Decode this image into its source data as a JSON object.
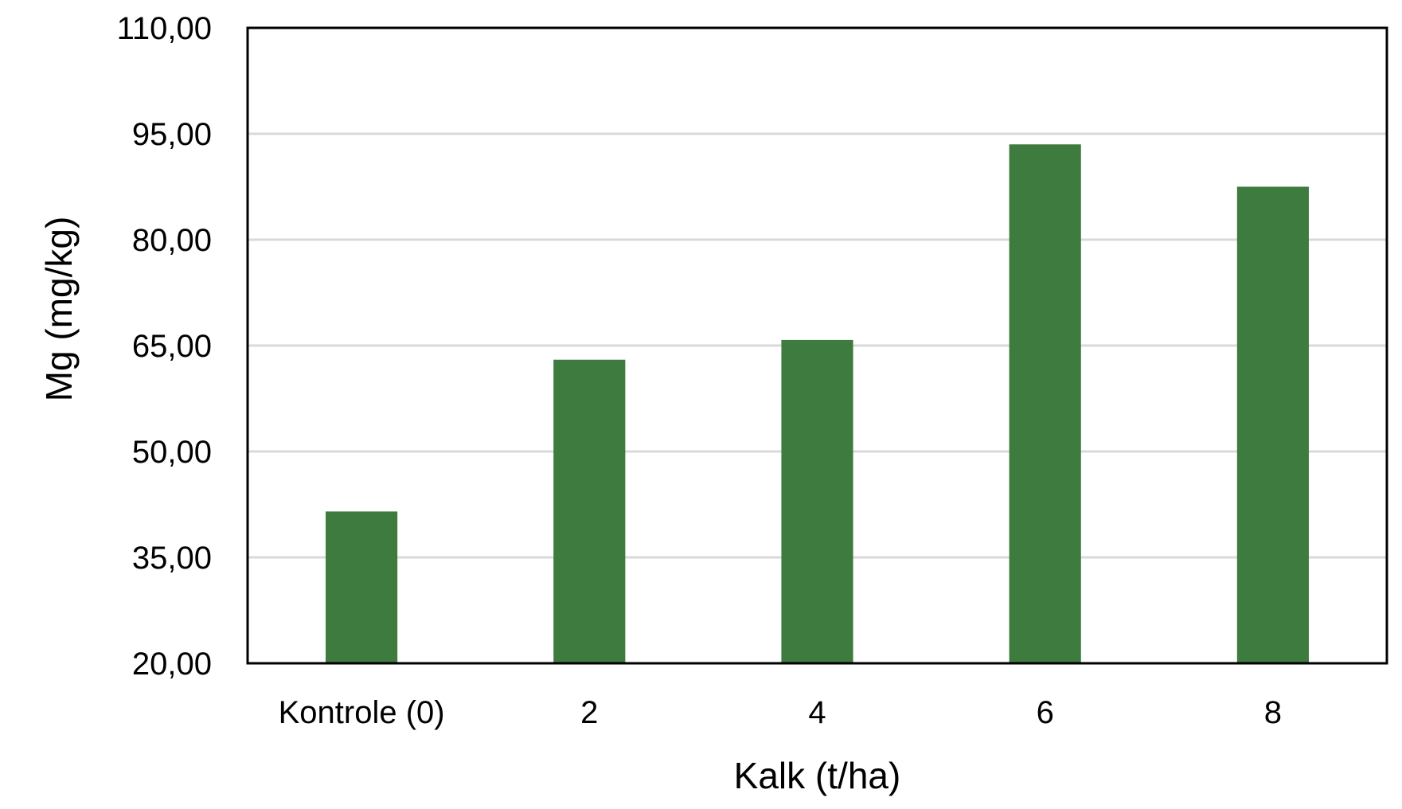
{
  "chart_data": {
    "type": "bar",
    "title": "",
    "xlabel": "Kalk (t/ha)",
    "ylabel": "Mg (mg/kg)",
    "categories": [
      "Kontrole (0)",
      "2",
      "4",
      "6",
      "8"
    ],
    "values": [
      41.5,
      63.0,
      65.8,
      93.5,
      87.5
    ],
    "ylim": [
      20,
      110
    ],
    "yticks": [
      20,
      35,
      50,
      65,
      80,
      95,
      110
    ],
    "ytick_labels": [
      "20,00",
      "35,00",
      "50,00",
      "65,00",
      "80,00",
      "95,00",
      "110,00"
    ],
    "grid": true,
    "legend": "none",
    "colors": {
      "bar": "#3d7b3e",
      "grid": "#d9d9d9",
      "frame": "#000000"
    }
  }
}
